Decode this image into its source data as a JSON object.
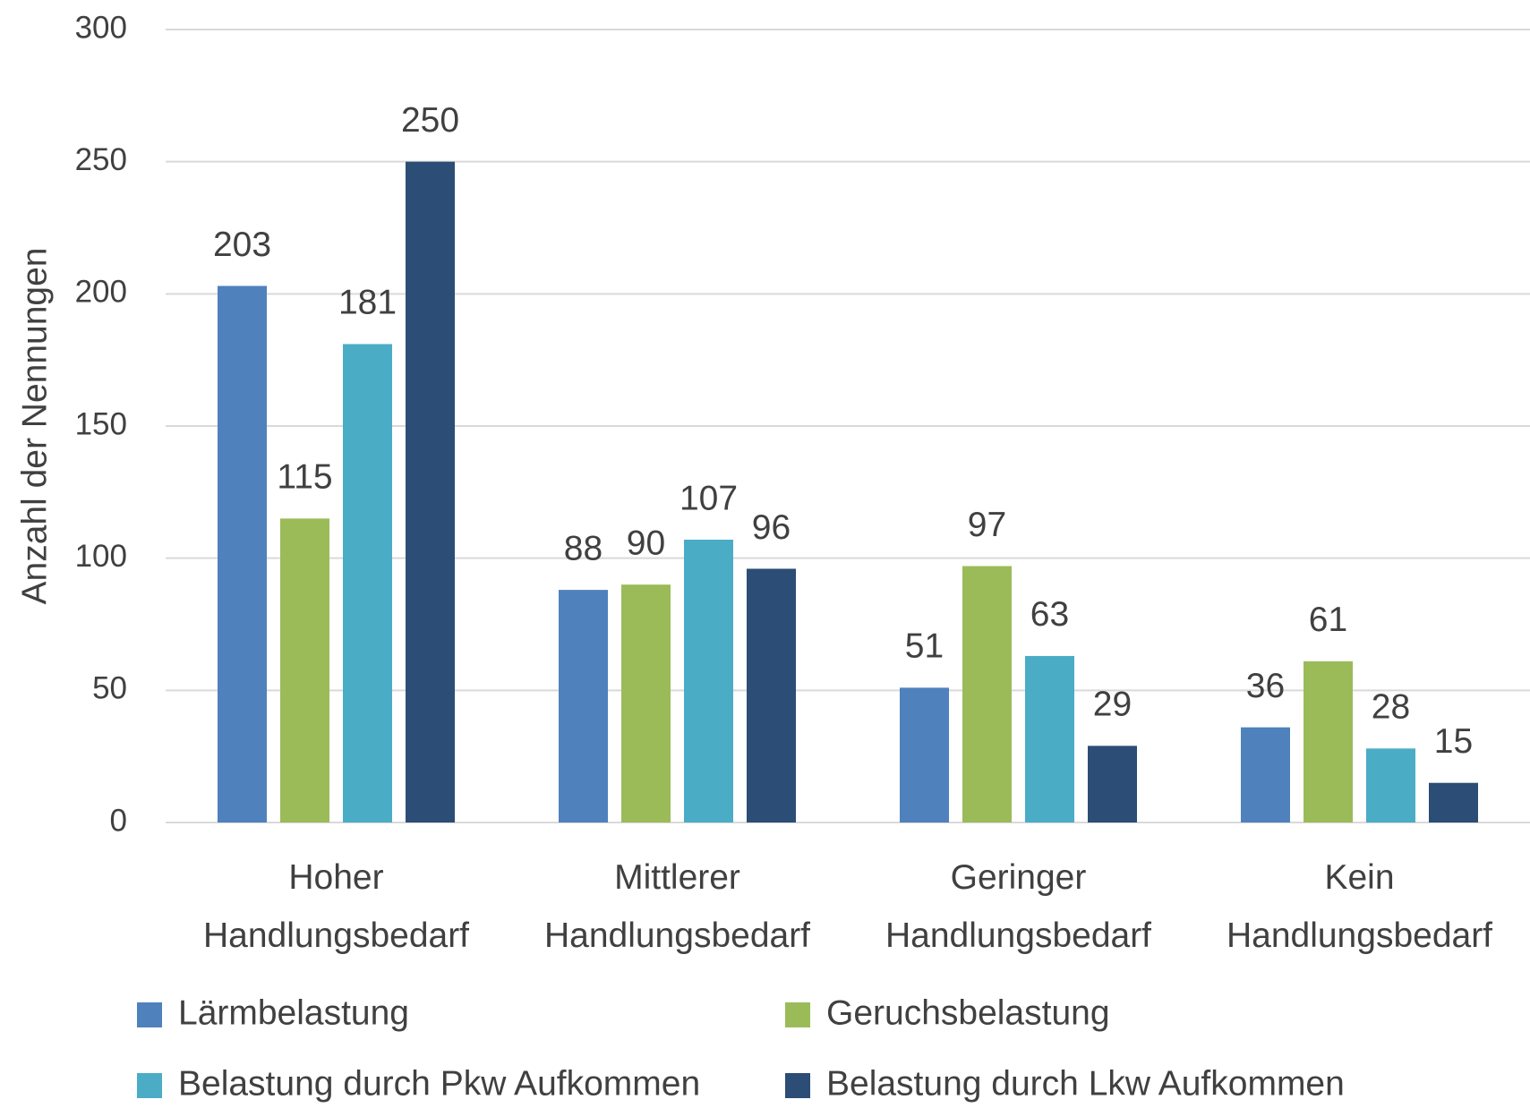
{
  "chart_data": {
    "type": "bar",
    "y_label": "Anzahl der Nennungen",
    "categories": [
      "Hoher Handlungsbedarf",
      "Mittlerer Handlungsbedarf",
      "Geringer Handlungsbedarf",
      "Kein Handlungsbedarf"
    ],
    "series": [
      {
        "name": "Lärmbelastung",
        "color": "#4f81bd",
        "values": [
          203,
          88,
          51,
          36
        ]
      },
      {
        "name": "Geruchsbelastung",
        "color": "#9bbb59",
        "values": [
          115,
          90,
          97,
          61
        ]
      },
      {
        "name": "Belastung durch Pkw Aufkommen",
        "color": "#4bacc6",
        "values": [
          181,
          107,
          63,
          28
        ]
      },
      {
        "name": "Belastung durch Lkw Aufkommen",
        "color": "#2c4d75",
        "values": [
          250,
          96,
          29,
          15
        ]
      }
    ],
    "ylim": [
      0,
      300
    ],
    "yticks": [
      0,
      50,
      100,
      150,
      200,
      250,
      300
    ],
    "grid": true,
    "legend": "bottom"
  }
}
